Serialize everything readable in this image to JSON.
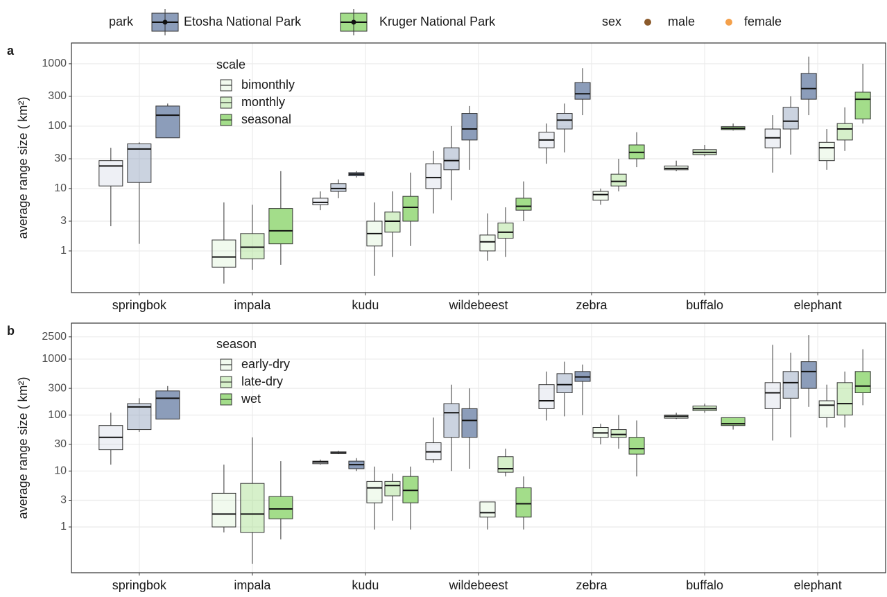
{
  "legend": {
    "park_title": "park",
    "parks": [
      "Etosha National Park",
      "Kruger National Park"
    ],
    "park_colors": [
      "#8c9dba",
      "#a3dd8a"
    ],
    "sex_title": "sex",
    "sexes": [
      "male",
      "female"
    ],
    "sex_colors": [
      "#8b5a2b",
      "#f4a04a"
    ]
  },
  "chart_data": [
    {
      "type": "box",
      "panel_label": "a",
      "y_label": "average range size ( km²)",
      "legend_title": "scale",
      "groups": [
        "bimonthly",
        "monthly",
        "seasonal"
      ],
      "group_opacity": [
        0.15,
        0.45,
        1
      ],
      "categories": [
        "springbok",
        "impala",
        "kudu",
        "wildebeest",
        "zebra",
        "buffalo",
        "elephant"
      ],
      "log_scale": true,
      "grid": true,
      "ylim": [
        0.215,
        2150
      ],
      "yticks": [
        1,
        3,
        10,
        30,
        100,
        300,
        1000
      ],
      "boxes": [
        {
          "category": 0,
          "park": 0,
          "group": 0,
          "stats": [
            2.5,
            11,
            23,
            28,
            45
          ]
        },
        {
          "category": 0,
          "park": 0,
          "group": 1,
          "stats": [
            1.3,
            12.5,
            43,
            52,
            55
          ]
        },
        {
          "category": 0,
          "park": 0,
          "group": 2,
          "stats": [
            65,
            65,
            150,
            210,
            230
          ]
        },
        {
          "category": 1,
          "park": 1,
          "group": 0,
          "stats": [
            0.3,
            0.55,
            0.8,
            1.5,
            6
          ]
        },
        {
          "category": 1,
          "park": 1,
          "group": 1,
          "stats": [
            0.5,
            0.75,
            1.15,
            1.9,
            5.5
          ]
        },
        {
          "category": 1,
          "park": 1,
          "group": 2,
          "stats": [
            0.6,
            1.3,
            2.1,
            4.8,
            19
          ]
        },
        {
          "category": 2,
          "park": 0,
          "group": 0,
          "stats": [
            4.5,
            5.5,
            6,
            7,
            9
          ]
        },
        {
          "category": 2,
          "park": 0,
          "group": 1,
          "stats": [
            7,
            9,
            10,
            12,
            14
          ]
        },
        {
          "category": 2,
          "park": 0,
          "group": 2,
          "stats": [
            15,
            16,
            17,
            18,
            19
          ]
        },
        {
          "category": 2,
          "park": 1,
          "group": 0,
          "stats": [
            0.4,
            1.2,
            1.9,
            3,
            6
          ]
        },
        {
          "category": 2,
          "park": 1,
          "group": 1,
          "stats": [
            0.8,
            2,
            3,
            4.2,
            9
          ]
        },
        {
          "category": 2,
          "park": 1,
          "group": 2,
          "stats": [
            1.2,
            3,
            5,
            7.5,
            18
          ]
        },
        {
          "category": 3,
          "park": 0,
          "group": 0,
          "stats": [
            4,
            10,
            15,
            25,
            40
          ]
        },
        {
          "category": 3,
          "park": 0,
          "group": 1,
          "stats": [
            6.5,
            20,
            28,
            45,
            100
          ]
        },
        {
          "category": 3,
          "park": 0,
          "group": 2,
          "stats": [
            20,
            60,
            90,
            160,
            210
          ]
        },
        {
          "category": 3,
          "park": 1,
          "group": 0,
          "stats": [
            0.7,
            1,
            1.4,
            1.8,
            4
          ]
        },
        {
          "category": 3,
          "park": 1,
          "group": 1,
          "stats": [
            0.8,
            1.6,
            2,
            2.8,
            5
          ]
        },
        {
          "category": 3,
          "park": 1,
          "group": 2,
          "stats": [
            3,
            4.5,
            5.2,
            7,
            13
          ]
        },
        {
          "category": 4,
          "park": 0,
          "group": 0,
          "stats": [
            25,
            45,
            60,
            80,
            110
          ]
        },
        {
          "category": 4,
          "park": 0,
          "group": 1,
          "stats": [
            38,
            90,
            125,
            160,
            230
          ]
        },
        {
          "category": 4,
          "park": 0,
          "group": 2,
          "stats": [
            150,
            270,
            330,
            500,
            850
          ]
        },
        {
          "category": 4,
          "park": 1,
          "group": 0,
          "stats": [
            5.5,
            6.5,
            8,
            9,
            10
          ]
        },
        {
          "category": 4,
          "park": 1,
          "group": 1,
          "stats": [
            9,
            11,
            13,
            17,
            30
          ]
        },
        {
          "category": 4,
          "park": 1,
          "group": 2,
          "stats": [
            22,
            30,
            38,
            50,
            80
          ]
        },
        {
          "category": 5,
          "park": 1,
          "group": 0,
          "stats": [
            19,
            20,
            21,
            23,
            28
          ]
        },
        {
          "category": 5,
          "park": 1,
          "group": 1,
          "stats": [
            33,
            35,
            38,
            42,
            50
          ]
        },
        {
          "category": 5,
          "park": 1,
          "group": 2,
          "stats": [
            85,
            88,
            92,
            98,
            110
          ]
        },
        {
          "category": 6,
          "park": 0,
          "group": 0,
          "stats": [
            18,
            45,
            65,
            90,
            150
          ]
        },
        {
          "category": 6,
          "park": 0,
          "group": 1,
          "stats": [
            35,
            90,
            120,
            200,
            300
          ]
        },
        {
          "category": 6,
          "park": 0,
          "group": 2,
          "stats": [
            150,
            270,
            400,
            700,
            1300
          ]
        },
        {
          "category": 6,
          "park": 1,
          "group": 0,
          "stats": [
            20,
            28,
            45,
            55,
            90
          ]
        },
        {
          "category": 6,
          "park": 1,
          "group": 1,
          "stats": [
            40,
            60,
            90,
            110,
            200
          ]
        },
        {
          "category": 6,
          "park": 1,
          "group": 2,
          "stats": [
            110,
            130,
            270,
            350,
            1000
          ]
        }
      ]
    },
    {
      "type": "box",
      "panel_label": "b",
      "y_label": "average range size ( km²)",
      "legend_title": "season",
      "groups": [
        "early-dry",
        "late-dry",
        "wet"
      ],
      "group_opacity": [
        0.15,
        0.45,
        1
      ],
      "categories": [
        "springbok",
        "impala",
        "kudu",
        "wildebeest",
        "zebra",
        "buffalo",
        "elephant"
      ],
      "log_scale": true,
      "grid": true,
      "ylim": [
        0.152,
        4400
      ],
      "yticks": [
        1,
        3,
        10,
        30,
        100,
        300,
        1000,
        2500
      ],
      "boxes": [
        {
          "category": 0,
          "park": 0,
          "group": 0,
          "stats": [
            13,
            24,
            40,
            65,
            110
          ]
        },
        {
          "category": 0,
          "park": 0,
          "group": 1,
          "stats": [
            50,
            55,
            140,
            160,
            200
          ]
        },
        {
          "category": 0,
          "park": 0,
          "group": 2,
          "stats": [
            85,
            85,
            200,
            270,
            330
          ]
        },
        {
          "category": 1,
          "park": 1,
          "group": 0,
          "stats": [
            0.8,
            1,
            1.7,
            4,
            13
          ]
        },
        {
          "category": 1,
          "park": 1,
          "group": 1,
          "stats": [
            0.22,
            0.8,
            1.7,
            6,
            40
          ]
        },
        {
          "category": 1,
          "park": 1,
          "group": 2,
          "stats": [
            0.6,
            1.4,
            2.1,
            3.5,
            15
          ]
        },
        {
          "category": 2,
          "park": 0,
          "group": 0,
          "stats": [
            13,
            13.5,
            14.5,
            15,
            16
          ]
        },
        {
          "category": 2,
          "park": 0,
          "group": 1,
          "stats": [
            20,
            20.5,
            21,
            22,
            23
          ]
        },
        {
          "category": 2,
          "park": 0,
          "group": 2,
          "stats": [
            10,
            11,
            13,
            15,
            17
          ]
        },
        {
          "category": 2,
          "park": 1,
          "group": 0,
          "stats": [
            0.9,
            2.7,
            5,
            6.5,
            12
          ]
        },
        {
          "category": 2,
          "park": 1,
          "group": 1,
          "stats": [
            1.3,
            3.6,
            5.5,
            6.5,
            9
          ]
        },
        {
          "category": 2,
          "park": 1,
          "group": 2,
          "stats": [
            0.9,
            2.7,
            4.5,
            8,
            12
          ]
        },
        {
          "category": 3,
          "park": 0,
          "group": 0,
          "stats": [
            14,
            16,
            22,
            32,
            90
          ]
        },
        {
          "category": 3,
          "park": 0,
          "group": 1,
          "stats": [
            10,
            40,
            110,
            160,
            350
          ]
        },
        {
          "category": 3,
          "park": 0,
          "group": 2,
          "stats": [
            11,
            40,
            80,
            130,
            300
          ]
        },
        {
          "category": 3,
          "park": 1,
          "group": 0,
          "stats": [
            0.9,
            1.5,
            1.8,
            2.8,
            2.8
          ]
        },
        {
          "category": 3,
          "park": 1,
          "group": 1,
          "stats": [
            8,
            9.5,
            11,
            18,
            25
          ]
        },
        {
          "category": 3,
          "park": 1,
          "group": 2,
          "stats": [
            0.9,
            1.5,
            2.6,
            5,
            8
          ]
        },
        {
          "category": 4,
          "park": 0,
          "group": 0,
          "stats": [
            80,
            130,
            180,
            350,
            600
          ]
        },
        {
          "category": 4,
          "park": 0,
          "group": 1,
          "stats": [
            95,
            250,
            350,
            550,
            900
          ]
        },
        {
          "category": 4,
          "park": 0,
          "group": 2,
          "stats": [
            100,
            400,
            480,
            600,
            800
          ]
        },
        {
          "category": 4,
          "park": 1,
          "group": 0,
          "stats": [
            30,
            40,
            48,
            60,
            70
          ]
        },
        {
          "category": 4,
          "park": 1,
          "group": 1,
          "stats": [
            25,
            40,
            45,
            55,
            100
          ]
        },
        {
          "category": 4,
          "park": 1,
          "group": 2,
          "stats": [
            8,
            20,
            25,
            40,
            80
          ]
        },
        {
          "category": 5,
          "park": 1,
          "group": 0,
          "stats": [
            85,
            88,
            95,
            100,
            110
          ]
        },
        {
          "category": 5,
          "park": 1,
          "group": 1,
          "stats": [
            110,
            120,
            130,
            145,
            160
          ]
        },
        {
          "category": 5,
          "park": 1,
          "group": 2,
          "stats": [
            55,
            65,
            70,
            90,
            90
          ]
        },
        {
          "category": 6,
          "park": 0,
          "group": 0,
          "stats": [
            35,
            130,
            250,
            380,
            1800
          ]
        },
        {
          "category": 6,
          "park": 0,
          "group": 1,
          "stats": [
            40,
            200,
            380,
            600,
            1300
          ]
        },
        {
          "category": 6,
          "park": 0,
          "group": 2,
          "stats": [
            140,
            300,
            600,
            900,
            2700
          ]
        },
        {
          "category": 6,
          "park": 1,
          "group": 0,
          "stats": [
            60,
            90,
            150,
            180,
            350
          ]
        },
        {
          "category": 6,
          "park": 1,
          "group": 1,
          "stats": [
            60,
            100,
            160,
            380,
            600
          ]
        },
        {
          "category": 6,
          "park": 1,
          "group": 2,
          "stats": [
            150,
            250,
            330,
            600,
            1500
          ]
        }
      ]
    }
  ]
}
